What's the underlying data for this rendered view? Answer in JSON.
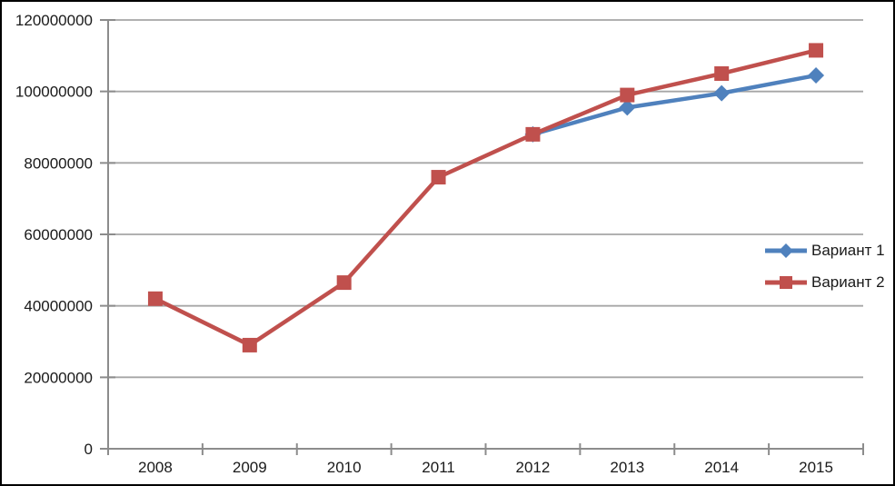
{
  "chart_data": {
    "type": "line",
    "title": "",
    "xlabel": "",
    "ylabel": "",
    "categories": [
      "2008",
      "2009",
      "2010",
      "2011",
      "2012",
      "2013",
      "2014",
      "2015"
    ],
    "series": [
      {
        "name": "Вариант 1",
        "color": "#4F81BD",
        "marker": "diamond",
        "values": [
          null,
          null,
          null,
          null,
          88000000,
          95500000,
          99500000,
          104500000
        ]
      },
      {
        "name": "Вариант 2",
        "color": "#C0504D",
        "marker": "square",
        "values": [
          42000000,
          29000000,
          46500000,
          76000000,
          88000000,
          99000000,
          105000000,
          111500000
        ]
      }
    ],
    "y_ticks": [
      0,
      20000000,
      40000000,
      60000000,
      80000000,
      100000000,
      120000000
    ],
    "y_tick_labels": [
      "0",
      "20000000",
      "40000000",
      "60000000",
      "80000000",
      "100000000",
      "120000000"
    ],
    "ylim": [
      0,
      120000000
    ],
    "grid": "horizontal",
    "legend_position": "right"
  },
  "colors": {
    "background": "#FFFFFF",
    "frame_border": "#000000",
    "gridline": "#A6A6A6",
    "axis": "#8C8C8C",
    "tick": "#8C8C8C",
    "label_text": "#1A1A1A"
  }
}
